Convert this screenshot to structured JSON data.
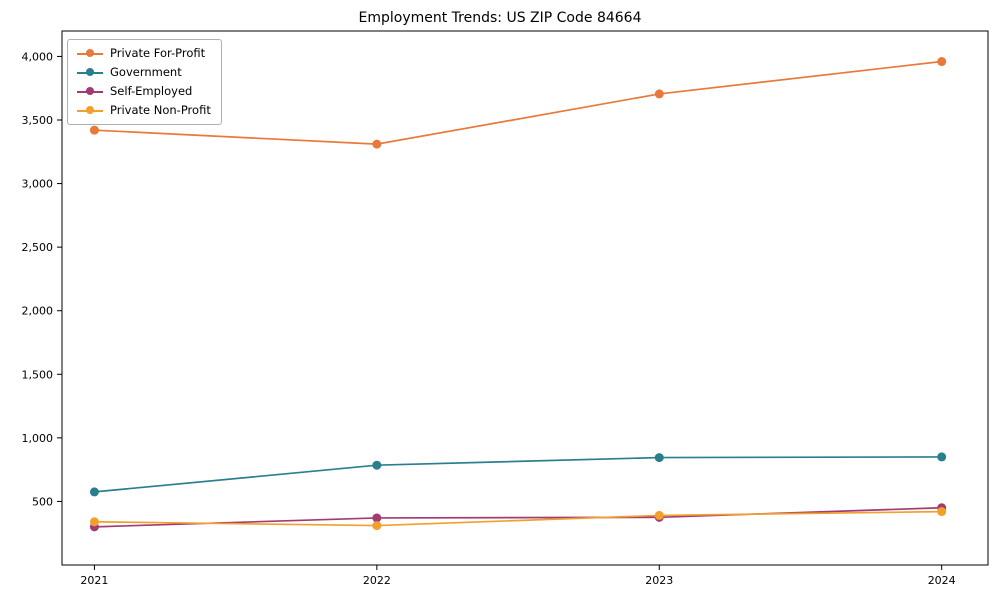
{
  "chart_data": {
    "type": "line",
    "title": "Employment Trends: US ZIP Code 84664",
    "xlabel": "",
    "ylabel": "",
    "categories": [
      "2021",
      "2022",
      "2023",
      "2024"
    ],
    "series": [
      {
        "name": "Private For-Profit",
        "color": "#e8793a",
        "values": [
          3420,
          3310,
          3705,
          3960
        ]
      },
      {
        "name": "Government",
        "color": "#2a7f8f",
        "values": [
          575,
          785,
          845,
          850
        ]
      },
      {
        "name": "Self-Employed",
        "color": "#a23b72",
        "values": [
          300,
          370,
          375,
          450
        ]
      },
      {
        "name": "Private Non-Profit",
        "color": "#f1a02e",
        "values": [
          340,
          310,
          390,
          420
        ]
      }
    ],
    "yticks": [
      {
        "value": 500,
        "label": "500"
      },
      {
        "value": 1000,
        "label": "1,000"
      },
      {
        "value": 1500,
        "label": "1,500"
      },
      {
        "value": 2000,
        "label": "2,000"
      },
      {
        "value": 2500,
        "label": "2,500"
      },
      {
        "value": 3000,
        "label": "3,000"
      },
      {
        "value": 3500,
        "label": "3,500"
      },
      {
        "value": 4000,
        "label": "4,000"
      }
    ],
    "ylim": [
      0,
      4200
    ],
    "grid": false,
    "legend_position": "upper left"
  }
}
